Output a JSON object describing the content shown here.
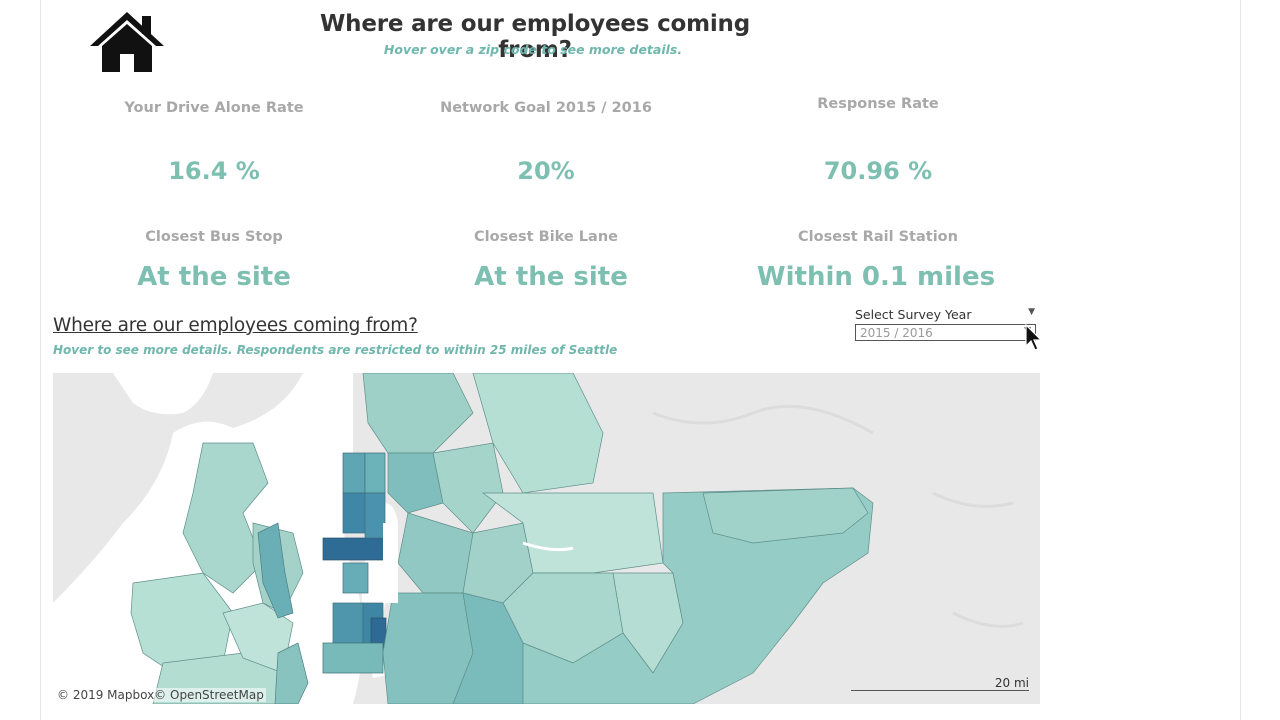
{
  "header": {
    "title": "Where are our employees coming from?",
    "subtitle": "Hover over a zip code to see more details."
  },
  "kpis": [
    {
      "label": "Your Drive Alone Rate",
      "value": "16.4 %"
    },
    {
      "label": "Network Goal 2015 / 2016",
      "value": "20%"
    },
    {
      "label": "Response Rate",
      "value": "70.96 %"
    }
  ],
  "transit": [
    {
      "label": "Closest Bus Stop",
      "value": "At the site"
    },
    {
      "label": "Closest Bike Lane",
      "value": "At the site"
    },
    {
      "label": "Closest Rail Station",
      "value": "Within 0.1 miles"
    }
  ],
  "map_section": {
    "title": "Where are our employees coming from?",
    "subtitle": "Hover to see more details. Respondents are restricted to within 25 miles of Seattle",
    "attribution": "© 2019 Mapbox© OpenStreetMap",
    "scale": "20 mi"
  },
  "filter": {
    "label": "Select Survey Year",
    "selected": "2015 / 2016"
  },
  "icons": {
    "home": "home-icon",
    "cursor": "mouse-pointer-icon",
    "dropdown": "caret-down-icon"
  },
  "colors": {
    "accent": "#7dbfb0",
    "label_gray": "#a8a8a8",
    "map_low": "#b9e0d6",
    "map_mid": "#7cc0bd",
    "map_high": "#2d6e95"
  }
}
